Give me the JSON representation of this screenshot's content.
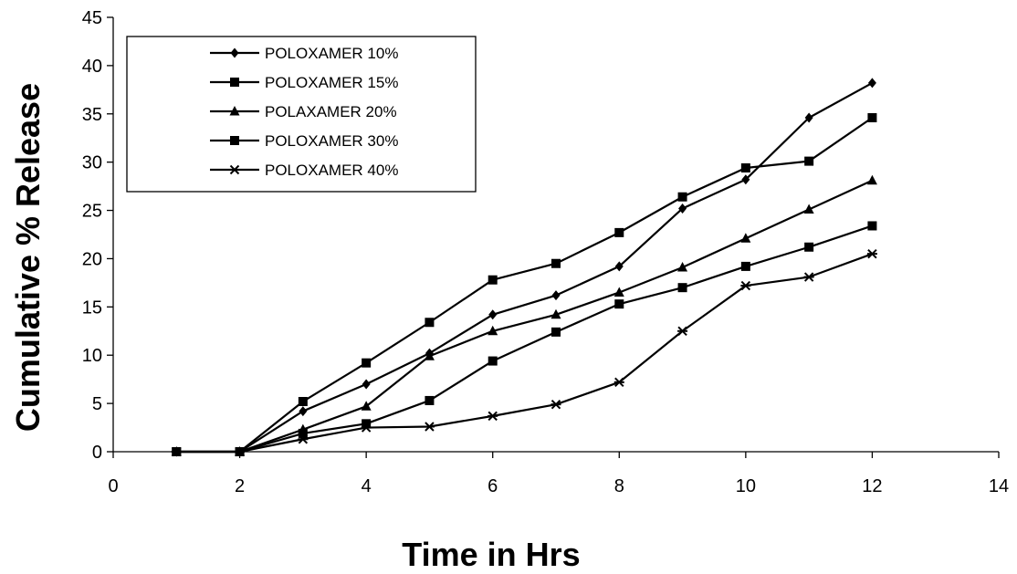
{
  "chart_data": {
    "type": "line",
    "title": "",
    "xlabel": "Time in Hrs",
    "ylabel": "Cumulative % Release",
    "xlim": [
      0,
      14
    ],
    "ylim": [
      0,
      45
    ],
    "xticks": [
      0,
      2,
      4,
      6,
      8,
      10,
      12,
      14
    ],
    "yticks": [
      0,
      5,
      10,
      15,
      20,
      25,
      30,
      35,
      40,
      45
    ],
    "grid": false,
    "legend_position": "top-left",
    "line_color": "#000000",
    "x": [
      1,
      2,
      3,
      4,
      5,
      6,
      7,
      8,
      9,
      10,
      11,
      12
    ],
    "series": [
      {
        "name": "POLOXAMER 10%",
        "marker": "diamond",
        "values": [
          0,
          0,
          4.2,
          7.0,
          10.2,
          14.2,
          16.2,
          19.2,
          25.2,
          28.2,
          34.6,
          38.2
        ]
      },
      {
        "name": "POLOXAMER 15%",
        "marker": "square",
        "values": [
          0,
          0,
          5.2,
          9.2,
          13.4,
          17.8,
          19.5,
          22.7,
          26.4,
          29.4,
          30.1,
          34.6
        ]
      },
      {
        "name": "POLAXAMER 20%",
        "marker": "triangle",
        "values": [
          0,
          0,
          2.3,
          4.7,
          9.9,
          12.5,
          14.2,
          16.5,
          19.1,
          22.1,
          25.1,
          28.1
        ]
      },
      {
        "name": "POLOXAMER 30%",
        "marker": "square",
        "values": [
          0,
          0,
          1.9,
          2.9,
          5.3,
          9.4,
          12.4,
          15.3,
          17.0,
          19.2,
          21.2,
          23.4
        ]
      },
      {
        "name": "POLOXAMER 40%",
        "marker": "asterisk",
        "values": [
          0,
          0,
          1.3,
          2.5,
          2.6,
          3.7,
          4.9,
          7.2,
          12.5,
          17.2,
          18.1,
          20.5
        ]
      }
    ]
  }
}
